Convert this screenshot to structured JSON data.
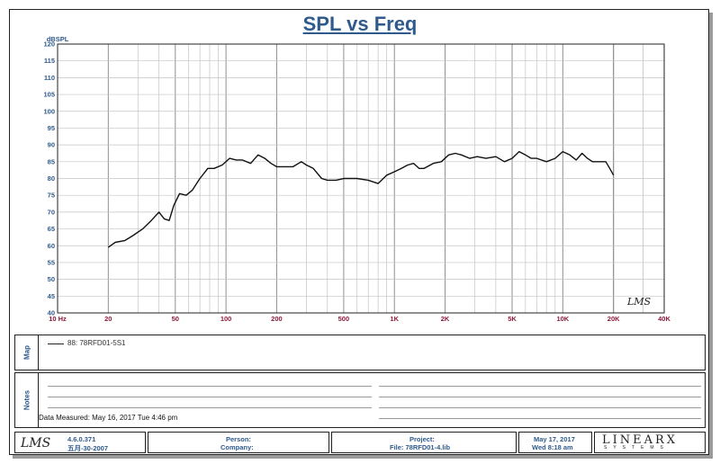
{
  "chart_data": {
    "type": "line",
    "title": "SPL vs Freq",
    "ylabel": "dBSPL",
    "xlabel": "",
    "x_scale": "log",
    "xlim": [
      10,
      40000
    ],
    "ylim": [
      40,
      120
    ],
    "grid": true,
    "x_tick_labels": [
      {
        "value": 10,
        "label": "10  Hz"
      },
      {
        "value": 20,
        "label": "20"
      },
      {
        "value": 50,
        "label": "50"
      },
      {
        "value": 100,
        "label": "100"
      },
      {
        "value": 200,
        "label": "200"
      },
      {
        "value": 500,
        "label": "500"
      },
      {
        "value": 1000,
        "label": "1K"
      },
      {
        "value": 2000,
        "label": "2K"
      },
      {
        "value": 5000,
        "label": "5K"
      },
      {
        "value": 10000,
        "label": "10K"
      },
      {
        "value": 20000,
        "label": "20K"
      },
      {
        "value": 40000,
        "label": "40K"
      }
    ],
    "y_ticks": [
      40,
      45,
      50,
      55,
      60,
      65,
      70,
      75,
      80,
      85,
      90,
      95,
      100,
      105,
      110,
      115,
      120
    ],
    "series": [
      {
        "name": "88: 78RFD01-5S1",
        "color": "#111111",
        "x": [
          20,
          22,
          25,
          28,
          32,
          36,
          40,
          43,
          46,
          49,
          53,
          58,
          63,
          70,
          78,
          85,
          95,
          105,
          115,
          125,
          140,
          155,
          170,
          185,
          200,
          220,
          250,
          280,
          300,
          330,
          370,
          400,
          450,
          500,
          550,
          600,
          700,
          800,
          900,
          1000,
          1100,
          1200,
          1300,
          1400,
          1500,
          1700,
          1900,
          2100,
          2300,
          2500,
          2800,
          3100,
          3500,
          4000,
          4500,
          5000,
          5500,
          6000,
          6500,
          7000,
          8000,
          9000,
          10000,
          11000,
          12000,
          13000,
          14000,
          15000,
          16000,
          17000,
          18000,
          19000,
          20000
        ],
        "y": [
          59.5,
          61,
          61.5,
          63,
          65,
          67.5,
          70,
          68,
          67.5,
          72,
          75.5,
          75,
          76.5,
          80,
          83,
          83,
          84,
          86,
          85.5,
          85.5,
          84.5,
          87,
          86,
          84.5,
          83.5,
          83.5,
          83.5,
          85,
          84,
          83,
          80,
          79.5,
          79.5,
          80,
          80,
          80,
          79.5,
          78.5,
          81,
          82,
          83,
          84,
          84.5,
          83,
          83,
          84.5,
          85,
          87,
          87.5,
          87,
          86,
          86.5,
          86,
          86.5,
          85,
          86,
          88,
          87,
          86,
          86,
          85,
          86,
          88,
          87,
          85.5,
          87.5,
          86,
          85,
          85,
          85,
          85,
          83,
          81
        ]
      }
    ],
    "annotations": [
      "LMS"
    ]
  },
  "panels": {
    "map_label": "Map",
    "notes_label": "Notes",
    "legend_entry": "88: 78RFD01-5S1",
    "data_measured": "Data Measured: May 16, 2017  Tue  4:46 pm"
  },
  "footer": {
    "logo": "LMS",
    "version": "4.6.0.371",
    "build_date": "五月-30-2007",
    "person_label": "Person:",
    "company_label": "Company:",
    "project_label": "Project:",
    "file_label": "File: 78RFD01-4.lib",
    "date": "May 17, 2017",
    "time": "Wed  8:18 am",
    "brand": "LINEARX",
    "brand_sub": "SYSTEMS"
  }
}
